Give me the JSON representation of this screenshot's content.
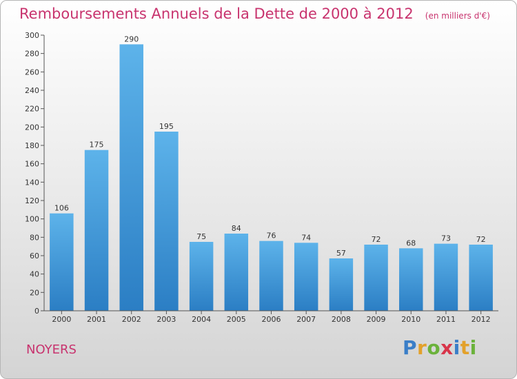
{
  "header": {
    "title": "Remboursements Annuels de la Dette de 2000 à 2012",
    "unit": "(en milliers d'€)"
  },
  "commune": "NOYERS",
  "logo": {
    "text": "Proxiti",
    "letters": [
      {
        "ch": "P",
        "color": "#3a7ec8"
      },
      {
        "ch": "r",
        "color": "#e3a12a"
      },
      {
        "ch": "o",
        "color": "#6bb23b"
      },
      {
        "ch": "x",
        "color": "#d8354a"
      },
      {
        "ch": "i",
        "color": "#3a7ec8"
      },
      {
        "ch": "t",
        "color": "#e3a12a"
      },
      {
        "ch": "i",
        "color": "#6bb23b"
      }
    ]
  },
  "chart_data": {
    "type": "bar",
    "title": "Remboursements Annuels de la Dette de 2000 à 2012",
    "categories": [
      "2000",
      "2001",
      "2002",
      "2003",
      "2004",
      "2005",
      "2006",
      "2007",
      "2008",
      "2009",
      "2010",
      "2011",
      "2012"
    ],
    "values": [
      106,
      175,
      290,
      195,
      75,
      84,
      76,
      74,
      57,
      72,
      68,
      73,
      72
    ],
    "ylim": [
      0,
      300
    ],
    "yticks": [
      0,
      20,
      40,
      60,
      80,
      100,
      120,
      140,
      160,
      180,
      200,
      220,
      240,
      260,
      280,
      300
    ],
    "grid": false,
    "bar_color": "#3d97dd"
  }
}
